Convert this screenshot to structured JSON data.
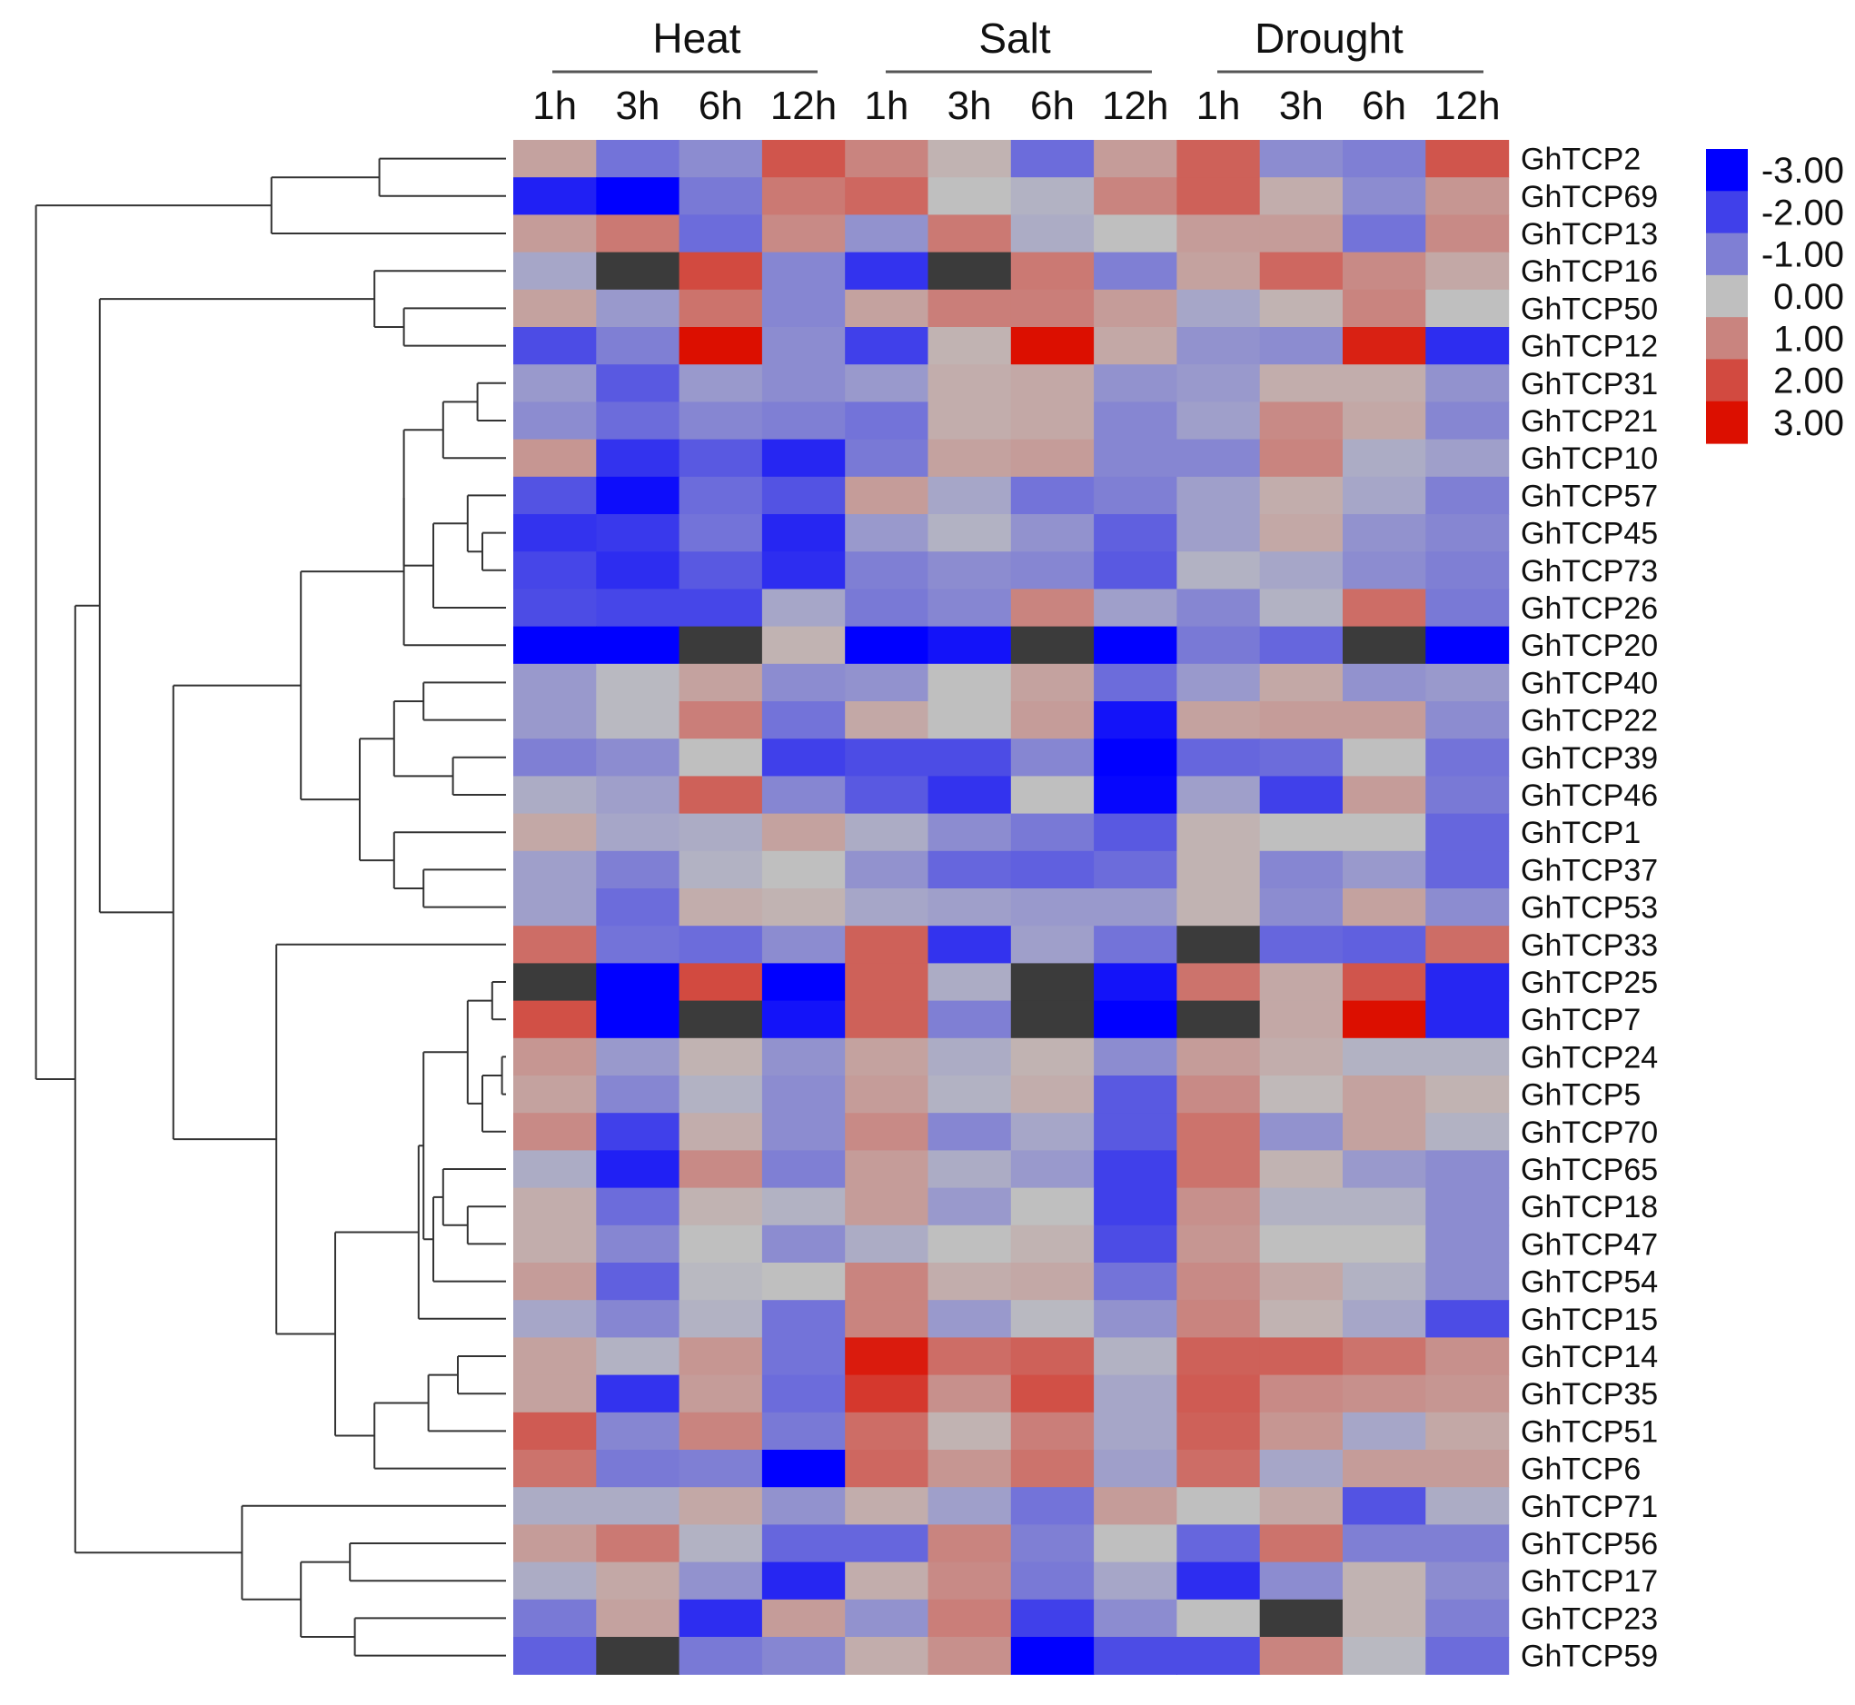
{
  "chart_data": {
    "type": "heatmap",
    "title": "",
    "groups": [
      "Heat",
      "Salt",
      "Drought"
    ],
    "timepoints": [
      "1h",
      "3h",
      "6h",
      "12h"
    ],
    "columns": [
      "Heat 1h",
      "Heat 3h",
      "Heat 6h",
      "Heat 12h",
      "Salt 1h",
      "Salt 3h",
      "Salt 6h",
      "Salt 12h",
      "Drought 1h",
      "Drought 3h",
      "Drought 6h",
      "Drought 12h"
    ],
    "genes": [
      "GhTCP2",
      "GhTCP69",
      "GhTCP13",
      "GhTCP16",
      "GhTCP50",
      "GhTCP12",
      "GhTCP31",
      "GhTCP21",
      "GhTCP10",
      "GhTCP57",
      "GhTCP45",
      "GhTCP73",
      "GhTCP26",
      "GhTCP20",
      "GhTCP40",
      "GhTCP22",
      "GhTCP39",
      "GhTCP46",
      "GhTCP1",
      "GhTCP37",
      "GhTCP53",
      "GhTCP33",
      "GhTCP25",
      "GhTCP7",
      "GhTCP24",
      "GhTCP5",
      "GhTCP70",
      "GhTCP65",
      "GhTCP18",
      "GhTCP47",
      "GhTCP54",
      "GhTCP15",
      "GhTCP14",
      "GhTCP35",
      "GhTCP51",
      "GhTCP6",
      "GhTCP71",
      "GhTCP56",
      "GhTCP17",
      "GhTCP23",
      "GhTCP59"
    ],
    "values": [
      [
        0.5,
        -1.2,
        -0.8,
        1.8,
        1.0,
        0.2,
        -1.3,
        0.6,
        1.6,
        -0.8,
        -1.0,
        1.8
      ],
      [
        -2.5,
        -3.0,
        -1.1,
        1.2,
        1.5,
        0.0,
        -0.2,
        1.0,
        1.6,
        0.3,
        -0.8,
        0.7
      ],
      [
        0.6,
        1.2,
        -1.3,
        0.9,
        -0.7,
        1.2,
        -0.3,
        0.0,
        0.6,
        0.6,
        -1.2,
        0.9
      ],
      [
        -0.4,
        null,
        2.0,
        -0.9,
        -2.2,
        null,
        1.2,
        -1.0,
        0.5,
        1.5,
        0.9,
        0.4
      ],
      [
        0.5,
        -0.6,
        1.3,
        -0.9,
        0.5,
        1.1,
        1.1,
        0.6,
        -0.4,
        0.2,
        1.0,
        0.0
      ],
      [
        -1.8,
        -1.0,
        3.0,
        -0.8,
        -2.0,
        0.2,
        3.0,
        0.4,
        -0.7,
        -0.8,
        2.7,
        -2.3
      ],
      [
        -0.6,
        -1.6,
        -0.6,
        -0.8,
        -0.6,
        0.3,
        0.4,
        -0.7,
        -0.6,
        0.3,
        0.3,
        -0.7
      ],
      [
        -0.8,
        -1.3,
        -0.9,
        -1.0,
        -1.2,
        0.3,
        0.4,
        -0.9,
        -0.5,
        0.9,
        0.4,
        -0.9
      ],
      [
        0.7,
        -2.2,
        -1.6,
        -2.4,
        -1.1,
        0.5,
        0.6,
        -0.9,
        -0.9,
        1.0,
        -0.3,
        -0.5
      ],
      [
        -1.7,
        -2.8,
        -1.3,
        -1.7,
        0.6,
        -0.4,
        -1.2,
        -1.0,
        -0.5,
        0.3,
        -0.4,
        -1.0
      ],
      [
        -2.2,
        -2.1,
        -1.2,
        -2.4,
        -0.6,
        -0.2,
        -0.7,
        -1.5,
        -0.5,
        0.4,
        -0.7,
        -0.9
      ],
      [
        -1.9,
        -2.3,
        -1.6,
        -2.3,
        -1.0,
        -0.8,
        -0.9,
        -1.6,
        -0.2,
        -0.4,
        -0.8,
        -1.0
      ],
      [
        -1.8,
        -1.9,
        -1.9,
        -0.4,
        -1.1,
        -0.9,
        1.0,
        -0.5,
        -0.9,
        -0.2,
        1.4,
        -1.1
      ],
      [
        -3.0,
        -3.0,
        null,
        0.2,
        -3.0,
        -2.7,
        null,
        -3.0,
        -1.1,
        -1.4,
        null,
        -3.0
      ],
      [
        -0.6,
        -0.1,
        0.5,
        -0.8,
        -0.7,
        0.0,
        0.5,
        -1.3,
        -0.6,
        0.4,
        -0.7,
        -0.6
      ],
      [
        -0.6,
        -0.1,
        1.1,
        -1.2,
        0.4,
        0.0,
        0.6,
        -2.7,
        0.5,
        0.6,
        0.6,
        -0.8
      ],
      [
        -1.0,
        -0.8,
        0.0,
        -2.0,
        -1.8,
        -1.8,
        -0.9,
        -3.0,
        -1.4,
        -1.3,
        0.0,
        -1.2
      ],
      [
        -0.3,
        -0.5,
        1.6,
        -0.9,
        -1.6,
        -2.2,
        0.0,
        -2.9,
        -0.5,
        -2.0,
        0.6,
        -1.1
      ],
      [
        0.4,
        -0.4,
        -0.3,
        0.5,
        -0.3,
        -0.8,
        -1.1,
        -1.6,
        0.2,
        0.0,
        0.0,
        -1.4
      ],
      [
        -0.5,
        -1.0,
        -0.2,
        0.0,
        -0.7,
        -1.4,
        -1.5,
        -1.3,
        0.2,
        -0.9,
        -0.6,
        -1.4
      ],
      [
        -0.5,
        -1.3,
        0.3,
        0.2,
        -0.4,
        -0.5,
        -0.6,
        -0.6,
        0.2,
        -0.8,
        0.5,
        -0.8
      ],
      [
        1.4,
        -1.2,
        -1.3,
        -0.8,
        1.6,
        -2.2,
        -0.5,
        -1.2,
        null,
        -1.4,
        -1.5,
        1.4
      ],
      [
        null,
        -3.0,
        2.0,
        -3.0,
        1.6,
        -0.3,
        null,
        -2.7,
        1.3,
        0.4,
        1.8,
        -2.4
      ],
      [
        1.9,
        -3.0,
        null,
        -2.7,
        1.6,
        -1.0,
        null,
        -3.0,
        null,
        0.4,
        3.0,
        -2.4
      ],
      [
        0.7,
        -0.6,
        0.2,
        -0.7,
        0.5,
        -0.3,
        0.2,
        -0.8,
        0.6,
        0.3,
        -0.2,
        -0.2
      ],
      [
        0.5,
        -0.9,
        -0.2,
        -0.8,
        0.6,
        -0.2,
        0.3,
        -1.6,
        0.9,
        0.1,
        0.5,
        0.2
      ],
      [
        0.9,
        -2.0,
        0.3,
        -0.8,
        0.9,
        -0.9,
        -0.4,
        -1.6,
        1.3,
        -0.7,
        0.5,
        -0.2
      ],
      [
        -0.3,
        -2.5,
        0.9,
        -1.0,
        0.6,
        -0.3,
        -0.6,
        -2.0,
        1.3,
        0.2,
        -0.6,
        -0.8
      ],
      [
        0.3,
        -1.3,
        0.2,
        -0.2,
        0.6,
        -0.6,
        0.0,
        -2.0,
        0.8,
        -0.2,
        -0.2,
        -0.8
      ],
      [
        0.3,
        -0.9,
        0.0,
        -0.8,
        -0.3,
        0.0,
        0.2,
        -1.8,
        0.7,
        0.0,
        0.0,
        -0.8
      ],
      [
        0.6,
        -1.5,
        -0.1,
        0.0,
        1.0,
        0.3,
        0.4,
        -1.2,
        0.9,
        0.4,
        -0.2,
        -0.8
      ],
      [
        -0.4,
        -0.9,
        -0.2,
        -1.2,
        1.0,
        -0.6,
        -0.1,
        -0.7,
        1.0,
        0.2,
        -0.4,
        -1.8
      ],
      [
        0.5,
        -0.2,
        0.7,
        -1.2,
        2.8,
        1.4,
        1.6,
        -0.2,
        1.6,
        1.6,
        1.3,
        0.8
      ],
      [
        0.5,
        -2.2,
        0.6,
        -1.3,
        2.3,
        0.8,
        1.9,
        -0.4,
        1.7,
        0.9,
        0.8,
        0.7
      ],
      [
        1.7,
        -0.9,
        1.0,
        -1.1,
        1.4,
        0.2,
        1.1,
        -0.4,
        1.6,
        0.7,
        -0.4,
        0.4
      ],
      [
        1.3,
        -1.1,
        -1.0,
        -3.0,
        1.5,
        0.7,
        1.3,
        -0.5,
        1.4,
        -0.4,
        0.6,
        0.6
      ],
      [
        -0.3,
        -0.3,
        0.4,
        -0.7,
        0.3,
        -0.5,
        -1.2,
        0.6,
        0.0,
        0.4,
        -1.7,
        -0.3
      ],
      [
        0.6,
        1.2,
        -0.2,
        -1.4,
        -1.4,
        1.0,
        -1.0,
        0.0,
        -1.4,
        1.3,
        -1.0,
        -1.0
      ],
      [
        -0.3,
        0.4,
        -0.7,
        -2.4,
        0.3,
        0.9,
        -1.1,
        -0.4,
        -2.3,
        -0.8,
        0.2,
        -0.8
      ],
      [
        -1.1,
        0.5,
        -2.3,
        0.6,
        -0.7,
        1.1,
        -2.0,
        -0.8,
        0.0,
        null,
        0.2,
        -1.0
      ],
      [
        -1.5,
        null,
        -1.1,
        -0.9,
        0.3,
        0.8,
        -3.0,
        -1.8,
        -1.8,
        1.0,
        -0.1,
        -1.3
      ]
    ],
    "legend": {
      "ticks": [
        "-3.00",
        "-2.00",
        "-1.00",
        "0.00",
        "1.00",
        "2.00",
        "3.00"
      ],
      "range": [
        -3,
        3
      ],
      "low_color": "#0000ff",
      "mid_color": "#bfbfbf",
      "high_color": "#dc0f00",
      "missing_color": "#3b3b3b",
      "placement": "right"
    }
  }
}
